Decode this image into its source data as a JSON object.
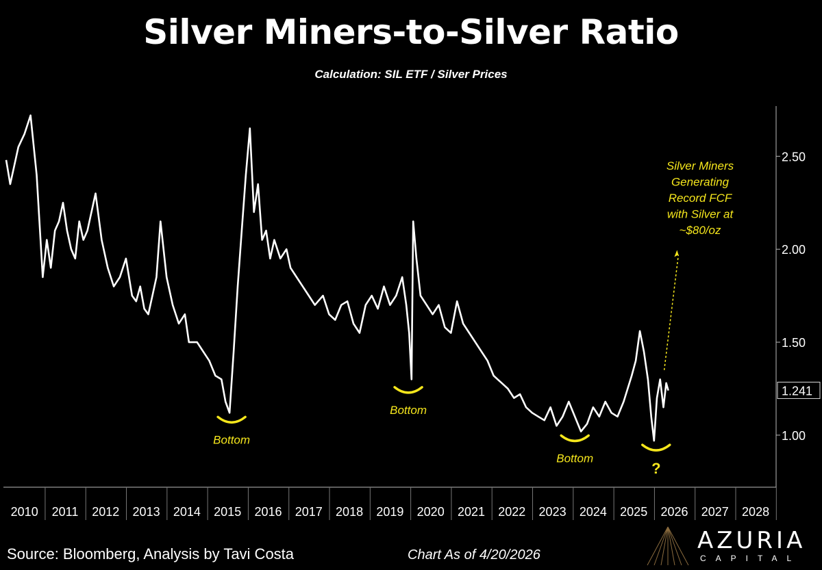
{
  "header": {
    "title": "Silver Miners-to-Silver Ratio",
    "subtitle": "Calculation: SIL ETF / Silver Prices"
  },
  "footer": {
    "source": "Source: Bloomberg, Analysis by Tavi Costa",
    "as_of": "Chart As of 4/20/2026",
    "logo_name": "AZURIA",
    "logo_sub": "CAPITAL"
  },
  "colors": {
    "background": "#000000",
    "line": "#ffffff",
    "annotation": "#f5e61c",
    "axis": "#bbbbbb"
  },
  "chart_data": {
    "type": "line",
    "title": "Silver Miners-to-Silver Ratio",
    "subtitle": "Calculation: SIL ETF / Silver Prices",
    "xlim": [
      2010,
      2029
    ],
    "ylim": [
      0.72,
      2.77
    ],
    "x_ticks": [
      "2010",
      "2011",
      "2012",
      "2013",
      "2014",
      "2015",
      "2016",
      "2017",
      "2018",
      "2019",
      "2020",
      "2021",
      "2022",
      "2023",
      "2024",
      "2025",
      "2026",
      "2027",
      "2028"
    ],
    "y_ticks": [
      {
        "value": 2.5,
        "label": "2.50"
      },
      {
        "value": 2.0,
        "label": "2.00"
      },
      {
        "value": 1.5,
        "label": "1.50"
      },
      {
        "value": 1.0,
        "label": "1.00"
      }
    ],
    "last_value": 1.241,
    "last_value_label": "1.241",
    "grid": false,
    "series": [
      {
        "x": [
          2010.0,
          2010.1,
          2010.2,
          2010.3,
          2010.45,
          2010.6,
          2010.75,
          2010.9,
          2011.0,
          2011.1,
          2011.2,
          2011.3,
          2011.4,
          2011.5,
          2011.6,
          2011.7,
          2011.8,
          2011.9,
          2012.0,
          2012.2,
          2012.35,
          2012.5,
          2012.65,
          2012.8,
          2012.95,
          2013.1,
          2013.2,
          2013.3,
          2013.4,
          2013.5,
          2013.6,
          2013.7,
          2013.8,
          2013.95,
          2014.1,
          2014.25,
          2014.4,
          2014.5,
          2014.7,
          2014.85,
          2015.0,
          2015.15,
          2015.3,
          2015.4,
          2015.5,
          2015.6,
          2015.7,
          2015.8,
          2015.9,
          2016.0,
          2016.1,
          2016.2,
          2016.3,
          2016.4,
          2016.5,
          2016.6,
          2016.75,
          2016.9,
          2017.0,
          2017.15,
          2017.3,
          2017.45,
          2017.6,
          2017.8,
          2017.95,
          2018.1,
          2018.25,
          2018.4,
          2018.55,
          2018.7,
          2018.85,
          2019.0,
          2019.15,
          2019.3,
          2019.45,
          2019.6,
          2019.75,
          2019.85,
          2019.92,
          2019.98,
          2020.02,
          2020.1,
          2020.2,
          2020.35,
          2020.5,
          2020.65,
          2020.8,
          2020.95,
          2021.1,
          2021.25,
          2021.4,
          2021.55,
          2021.7,
          2021.85,
          2022.0,
          2022.1,
          2022.2,
          2022.35,
          2022.5,
          2022.65,
          2022.8,
          2022.95,
          2023.1,
          2023.25,
          2023.4,
          2023.55,
          2023.7,
          2023.85,
          2024.0,
          2024.15,
          2024.3,
          2024.45,
          2024.6,
          2024.75,
          2024.9,
          2025.05,
          2025.2,
          2025.3,
          2025.4,
          2025.5,
          2025.6,
          2025.7,
          2025.8,
          2025.88,
          2025.95,
          2026.02,
          2026.1,
          2026.18,
          2026.25,
          2026.3
        ],
        "y": [
          2.48,
          2.35,
          2.45,
          2.55,
          2.62,
          2.72,
          2.4,
          1.85,
          2.05,
          1.9,
          2.1,
          2.15,
          2.25,
          2.1,
          2.0,
          1.95,
          2.15,
          2.05,
          2.1,
          2.3,
          2.05,
          1.9,
          1.8,
          1.85,
          1.95,
          1.75,
          1.72,
          1.8,
          1.68,
          1.65,
          1.75,
          1.85,
          2.15,
          1.85,
          1.7,
          1.6,
          1.65,
          1.5,
          1.5,
          1.45,
          1.4,
          1.32,
          1.3,
          1.18,
          1.12,
          1.45,
          1.8,
          2.1,
          2.4,
          2.65,
          2.2,
          2.35,
          2.05,
          2.1,
          1.95,
          2.05,
          1.95,
          2.0,
          1.9,
          1.85,
          1.8,
          1.75,
          1.7,
          1.75,
          1.65,
          1.62,
          1.7,
          1.72,
          1.6,
          1.55,
          1.7,
          1.75,
          1.68,
          1.8,
          1.7,
          1.75,
          1.85,
          1.7,
          1.55,
          1.3,
          2.15,
          1.95,
          1.75,
          1.7,
          1.65,
          1.7,
          1.58,
          1.55,
          1.72,
          1.6,
          1.55,
          1.5,
          1.45,
          1.4,
          1.32,
          1.3,
          1.28,
          1.25,
          1.2,
          1.22,
          1.15,
          1.12,
          1.1,
          1.08,
          1.15,
          1.05,
          1.1,
          1.18,
          1.1,
          1.02,
          1.06,
          1.15,
          1.1,
          1.18,
          1.12,
          1.1,
          1.18,
          1.25,
          1.32,
          1.4,
          1.56,
          1.45,
          1.3,
          1.1,
          0.97,
          1.2,
          1.3,
          1.15,
          1.28,
          1.24
        ]
      }
    ],
    "annotations": [
      {
        "text": "Bottom",
        "x": 2015.55,
        "y": 1.12
      },
      {
        "text": "Bottom",
        "x": 2019.9,
        "y": 1.28
      },
      {
        "text": "Bottom",
        "x": 2024.0,
        "y": 1.02
      },
      {
        "text": "?",
        "x": 2026.0,
        "y": 0.97
      },
      {
        "text": "Silver Miners Generating Record FCF with Silver at ~$80/oz",
        "lines": [
          "Silver Miners",
          "Generating",
          "Record FCF",
          "with Silver at",
          "~$80/oz"
        ],
        "x": 2026.4,
        "y": 1.6
      }
    ]
  }
}
